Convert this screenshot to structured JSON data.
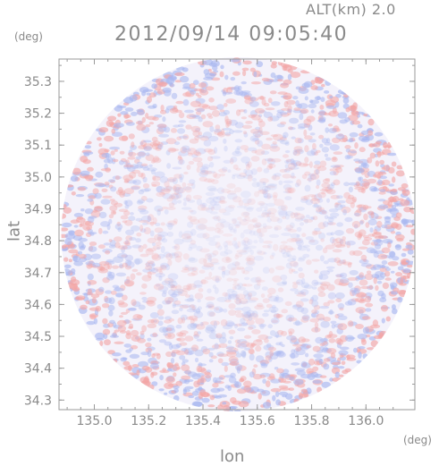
{
  "header": {
    "altitude_label": "ALT(km) 2.0",
    "timestamp": "2012/09/14 09:05:40"
  },
  "axes": {
    "x_label": "lon",
    "y_label": "lat",
    "x_unit": "(deg)",
    "y_unit": "(deg)",
    "x_ticks": [
      "135.0",
      "135.2",
      "135.4",
      "135.6",
      "135.8",
      "136.0"
    ],
    "y_ticks": [
      "35.3",
      "35.2",
      "35.1",
      "35.0",
      "34.9",
      "34.8",
      "34.7",
      "34.6",
      "34.5",
      "34.4",
      "34.3"
    ]
  },
  "map": {
    "lon_range": [
      134.87,
      136.18
    ],
    "lat_range": [
      34.27,
      35.37
    ],
    "center": [
      135.53,
      34.82
    ],
    "colors": {
      "positive": "#f3a6a6",
      "negative": "#a9b7f0",
      "neutral": "#f4f2fb",
      "frame": "#9a9a9a"
    }
  }
}
